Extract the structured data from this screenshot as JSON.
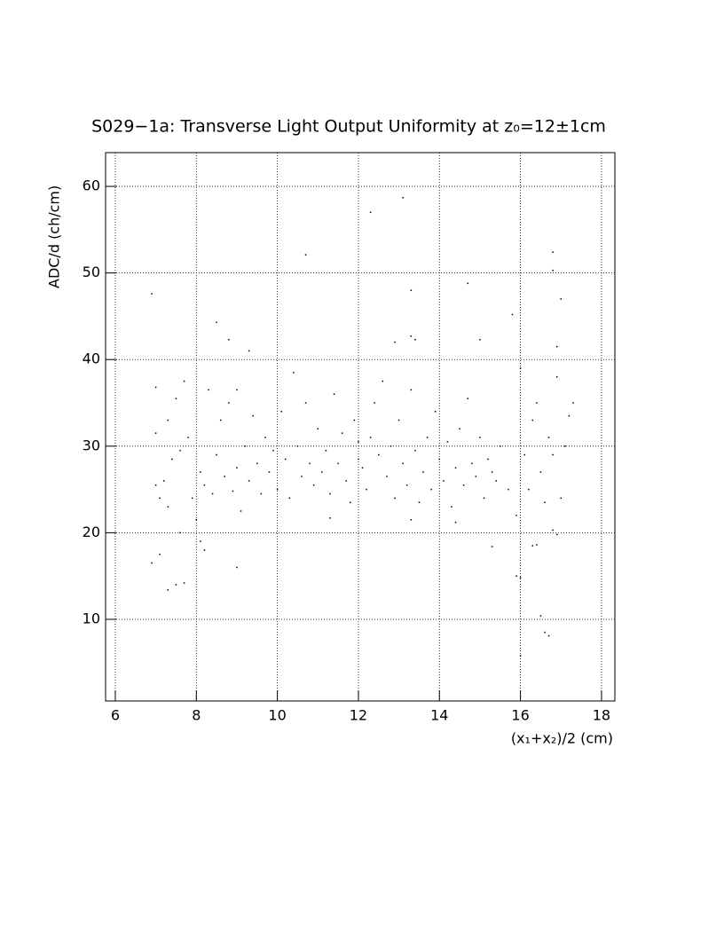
{
  "chart_data": {
    "type": "scatter",
    "title": "S029−1a: Transverse Light Output Uniformity at z₀=12±1cm",
    "x_label": "(x₁+x₂)/2 (cm)",
    "y_label": "ADC/d (ch/cm)",
    "color": "#000000",
    "grid": true,
    "xlim": [
      5.76,
      18.33
    ],
    "xticks": [
      6,
      8,
      10,
      12,
      14,
      16,
      18
    ],
    "ylim": [
      0.57,
      63.9
    ],
    "yticks": [
      10,
      20,
      30,
      40,
      50,
      60
    ],
    "x": [
      6.9,
      6.9,
      7.0,
      7.1,
      7.3,
      7.5,
      7.7,
      8.5,
      8.8,
      9.3,
      9.0,
      10.7,
      12.3,
      13.1,
      13.3,
      13.3,
      13.4,
      12.9,
      14.7,
      15.0,
      15.3,
      15.8,
      15.9,
      16.0,
      16.0,
      16.3,
      16.4,
      16.5,
      16.6,
      16.7,
      16.8,
      16.8,
      17.0,
      16.9,
      16.8,
      16.9,
      8.1,
      8.2,
      7.6,
      8.0,
      11.3,
      13.3,
      14.4,
      7.0,
      7.0,
      7.1,
      7.2,
      7.3,
      7.3,
      7.4,
      7.5,
      7.6,
      7.7,
      7.8,
      7.9,
      8.1,
      8.2,
      8.3,
      8.4,
      8.5,
      8.6,
      8.7,
      8.8,
      8.9,
      9.0,
      9.0,
      9.1,
      9.2,
      9.3,
      9.4,
      9.5,
      9.6,
      9.7,
      9.8,
      9.9,
      10.0,
      10.1,
      10.2,
      10.3,
      10.4,
      10.5,
      10.6,
      10.7,
      10.8,
      10.9,
      11.0,
      11.1,
      11.2,
      11.3,
      11.4,
      11.5,
      11.6,
      11.7,
      11.8,
      11.9,
      12.0,
      12.0,
      12.1,
      12.2,
      12.3,
      12.4,
      12.5,
      12.6,
      12.7,
      12.8,
      12.9,
      13.0,
      13.1,
      13.2,
      13.3,
      13.4,
      13.5,
      13.6,
      13.7,
      13.8,
      13.9,
      14.0,
      14.1,
      14.2,
      14.3,
      14.4,
      14.5,
      14.6,
      14.7,
      14.8,
      14.9,
      15.0,
      15.1,
      15.2,
      15.3,
      15.4,
      15.5,
      15.7,
      15.9,
      16.0,
      16.1,
      16.2,
      16.3,
      16.4,
      16.5,
      16.6,
      16.7,
      16.8,
      16.9,
      17.0,
      17.1,
      17.2,
      17.3
    ],
    "values": [
      47.6,
      16.5,
      36.8,
      17.5,
      13.4,
      14,
      14.2,
      44.3,
      42.3,
      41,
      16,
      52.1,
      57,
      58.7,
      48,
      42.7,
      42.3,
      42,
      48.8,
      42.3,
      18.4,
      45.2,
      15,
      5.8,
      14.8,
      18.5,
      18.6,
      10.4,
      8.5,
      8.1,
      52.4,
      50.3,
      47,
      41.5,
      20.3,
      19.8,
      19,
      18,
      20,
      21.5,
      21.7,
      21.5,
      21.2,
      31.5,
      25.5,
      24,
      26,
      33,
      23,
      28.5,
      35.5,
      29.5,
      37.5,
      31,
      24,
      27,
      25.5,
      36.5,
      24.5,
      29,
      33,
      26.5,
      35,
      24.8,
      36.5,
      27.5,
      22.5,
      30,
      26,
      33.5,
      28,
      24.5,
      31,
      27,
      29.5,
      25,
      34,
      28.5,
      24,
      38.5,
      30,
      26.5,
      35,
      28,
      25.5,
      32,
      27,
      29.5,
      24.5,
      36,
      28,
      31.5,
      26,
      23.5,
      33,
      28.5,
      30.5,
      27.5,
      25,
      31,
      35,
      29,
      37.5,
      26.5,
      30,
      24,
      33,
      28,
      25.5,
      36.5,
      29.5,
      23.5,
      27,
      31,
      25,
      34,
      28.5,
      26,
      30.5,
      23,
      27.5,
      32,
      25.5,
      35.5,
      28,
      26.5,
      31,
      24,
      28.5,
      27,
      26,
      30,
      25,
      22,
      39,
      29,
      25,
      33,
      35,
      27,
      23.5,
      31,
      29,
      38,
      24,
      30,
      33.5,
      35
    ]
  }
}
